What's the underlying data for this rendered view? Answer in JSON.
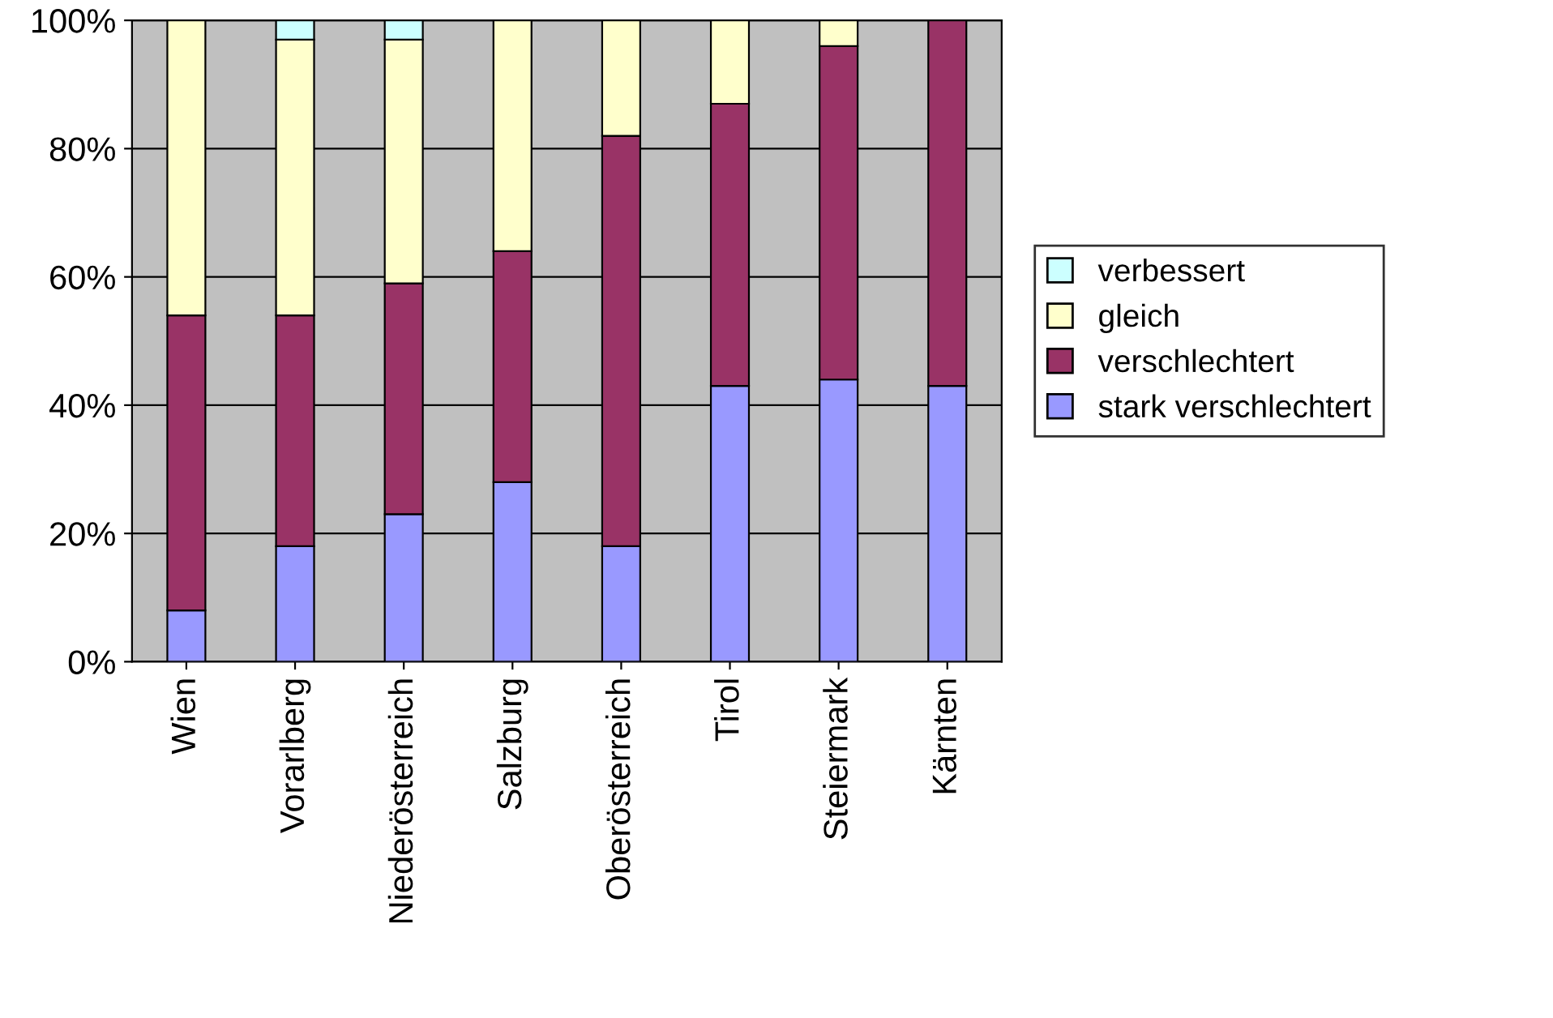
{
  "chart_data": {
    "type": "bar",
    "stacked": true,
    "categories": [
      "Wien",
      "Vorarlberg",
      "Niederösterreich",
      "Salzburg",
      "Oberösterreich",
      "Tirol",
      "Steiermark",
      "Kärnten"
    ],
    "series": [
      {
        "name": "stark verschlechtert",
        "color": "#9999ff",
        "values": [
          8,
          18,
          23,
          28,
          18,
          43,
          44,
          43
        ]
      },
      {
        "name": "verschlechtert",
        "color": "#993366",
        "values": [
          46,
          36,
          36,
          36,
          64,
          44,
          52,
          57
        ]
      },
      {
        "name": "gleich",
        "color": "#ffffcc",
        "values": [
          46,
          43,
          38,
          36,
          18,
          13,
          4,
          null
        ]
      },
      {
        "name": "verbessert",
        "color": "#ccffff",
        "values": [
          null,
          3,
          3,
          null,
          null,
          null,
          null,
          null
        ]
      }
    ],
    "ylim": [
      0,
      100
    ],
    "yticks": [
      {
        "value": 0,
        "label": "0%"
      },
      {
        "value": 20,
        "label": "20%"
      },
      {
        "value": 40,
        "label": "40%"
      },
      {
        "value": 60,
        "label": "60%"
      },
      {
        "value": 80,
        "label": "80%"
      },
      {
        "value": 100,
        "label": "100%"
      }
    ],
    "grid": "y",
    "legend": "right"
  }
}
